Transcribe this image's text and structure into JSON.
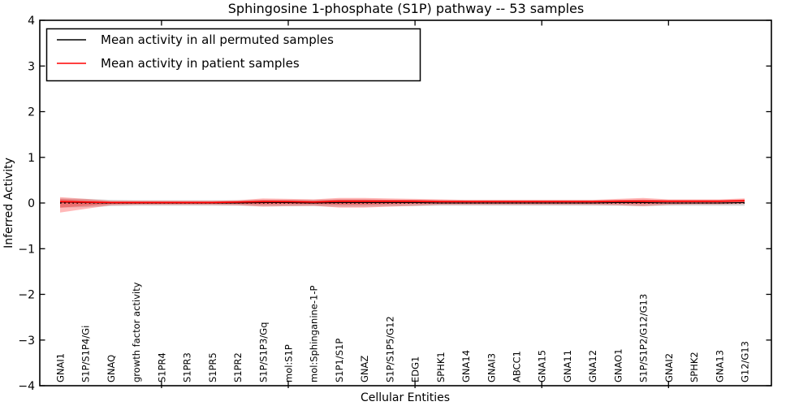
{
  "title": "Sphingosine 1-phosphate (S1P) pathway -- 53 samples",
  "axes": {
    "xlabel": "Cellular Entities",
    "ylabel": "Inferred Activity",
    "ytick_labels": [
      "4",
      "3",
      "2",
      "1",
      "0",
      "−1",
      "−2",
      "−3",
      "−4"
    ]
  },
  "legend": {
    "items": [
      {
        "label": "Mean activity in all permuted samples",
        "color": "#000000"
      },
      {
        "label": "Mean activity in patient samples",
        "color": "#ff0000"
      }
    ]
  },
  "colors": {
    "patient_line": "#ff0000",
    "patient_band": "rgba(255,0,0,0.28)",
    "permuted_line": "#000000",
    "permuted_band": "rgba(130,130,130,0.30)",
    "zero_line": "#000000",
    "frame": "#000000",
    "background": "#ffffff"
  },
  "chart_data": {
    "type": "line",
    "title": "Sphingosine 1-phosphate (S1P) pathway -- 53 samples",
    "xlabel": "Cellular Entities",
    "ylabel": "Inferred Activity",
    "ylim": [
      -4,
      4
    ],
    "yticks": [
      4,
      3,
      2,
      1,
      0,
      -1,
      -2,
      -3,
      -4
    ],
    "grid": false,
    "legend_position": "upper left",
    "major_xtick_indices": [
      4,
      9,
      14,
      19,
      24
    ],
    "categories": [
      "GNAI1",
      "S1P/S1P4/Gi",
      "GNAQ",
      "growth factor activity",
      "S1PR4",
      "S1PR3",
      "S1PR5",
      "S1PR2",
      "S1P/S1P3/Gq",
      "mol:S1P",
      "mol:Sphinganine-1-P",
      "S1P1/S1P",
      "GNAZ",
      "S1P/S1P5/G12",
      "EDG1",
      "SPHK1",
      "GNA14",
      "GNAI3",
      "ABCC1",
      "GNA15",
      "GNA11",
      "GNA12",
      "GNAO1",
      "S1P/S1P2/G12/G13",
      "GNAI2",
      "SPHK2",
      "GNA13",
      "G12/G13"
    ],
    "series": [
      {
        "name": "Mean activity in all permuted samples",
        "color": "#000000",
        "style": "solid",
        "values": [
          0.02,
          0.01,
          0.0,
          0.0,
          0.0,
          0.0,
          0.0,
          0.0,
          0.01,
          0.01,
          0.0,
          0.01,
          0.01,
          0.01,
          0.01,
          0.0,
          0.0,
          0.0,
          0.0,
          0.0,
          0.0,
          0.0,
          0.01,
          0.01,
          0.0,
          0.0,
          0.0,
          0.01
        ]
      },
      {
        "name": "Mean activity in patient samples",
        "color": "#ff0000",
        "style": "solid",
        "values": [
          0.03,
          0.02,
          0.01,
          0.01,
          0.01,
          0.01,
          0.01,
          0.02,
          0.03,
          0.03,
          0.02,
          0.04,
          0.04,
          0.04,
          0.04,
          0.03,
          0.03,
          0.03,
          0.03,
          0.03,
          0.03,
          0.03,
          0.04,
          0.04,
          0.04,
          0.04,
          0.04,
          0.05
        ]
      }
    ],
    "bands": [
      {
        "name": "patient mean ± std",
        "color": "rgba(255,0,0,0.28)",
        "upper": [
          0.13,
          0.09,
          0.05,
          0.05,
          0.05,
          0.05,
          0.05,
          0.06,
          0.1,
          0.09,
          0.08,
          0.11,
          0.11,
          0.1,
          0.09,
          0.08,
          0.07,
          0.07,
          0.07,
          0.07,
          0.07,
          0.07,
          0.09,
          0.11,
          0.08,
          0.08,
          0.08,
          0.1
        ],
        "lower": [
          -0.21,
          -0.13,
          -0.05,
          -0.04,
          -0.04,
          -0.04,
          -0.04,
          -0.05,
          -0.08,
          -0.07,
          -0.06,
          -0.1,
          -0.1,
          -0.08,
          -0.06,
          -0.04,
          -0.04,
          -0.04,
          -0.04,
          -0.04,
          -0.04,
          -0.04,
          -0.05,
          -0.07,
          -0.04,
          -0.03,
          -0.03,
          -0.02
        ]
      },
      {
        "name": "permuted mean ± std",
        "color": "rgba(130,130,130,0.30)",
        "halfwidth": [
          0.1,
          0.09,
          0.07,
          0.06,
          0.06,
          0.06,
          0.06,
          0.06,
          0.07,
          0.07,
          0.07,
          0.08,
          0.08,
          0.07,
          0.07,
          0.06,
          0.06,
          0.06,
          0.06,
          0.06,
          0.06,
          0.06,
          0.06,
          0.07,
          0.06,
          0.06,
          0.06,
          0.06
        ]
      }
    ],
    "zero_line": {
      "y": 0,
      "style": "dotted",
      "color": "#000000"
    }
  }
}
